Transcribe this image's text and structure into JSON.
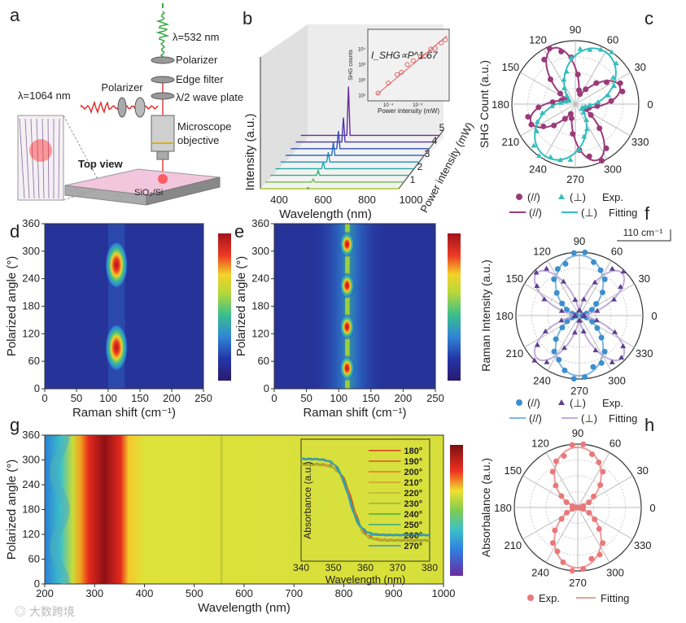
{
  "panel_labels": [
    "a",
    "b",
    "c",
    "d",
    "e",
    "f",
    "g",
    "h"
  ],
  "schematic": {
    "laser_out": "λ=532 nm",
    "polarizer_top": "Polarizer",
    "edge_filter": "Edge filter",
    "half_wave": "λ/2 wave plate",
    "objective_1": "Microscope",
    "objective_2": "objective",
    "polarizer_left": "Polarizer",
    "laser_in": "λ=1064 nm",
    "top_view": "Top view",
    "substrate": "SiO₂/Si"
  },
  "colors": {
    "purple": "#9b3a7a",
    "cyan": "#35bdbd",
    "blue": "#3d8fcd",
    "lilac": "#b7a4d4",
    "violet": "#5d3f8f",
    "pink": "#e9787a",
    "text": "#222222"
  },
  "watermark": "大数跨境",
  "chart_data": [
    {
      "id": "b",
      "type": "line",
      "title": "",
      "xlabel": "Wavelength (nm)",
      "ylabel": "Intensity (a.u.)",
      "zlabel": "Power intensity (mW)",
      "xticks": [
        "400",
        "600",
        "800",
        "1000"
      ],
      "xlim": [
        300,
        1100
      ],
      "zticks": [
        "1",
        "2",
        "3",
        "4",
        "5"
      ],
      "series_powers": [
        0.5,
        1,
        1.5,
        2,
        2.5,
        3,
        3.5,
        4,
        5
      ],
      "peak_nm": 532,
      "peak_heights": [
        0.03,
        0.06,
        0.1,
        0.14,
        0.2,
        0.27,
        0.36,
        0.5,
        1.0
      ],
      "inset": {
        "type": "scatter",
        "xlabel": "Power intensity (mW)",
        "ylabel": "SHG counts",
        "annotation": "I_SHG∝P^1.67",
        "exponent": 1.67,
        "xticks": [
          "10⁻⁴",
          "10⁻³"
        ],
        "yticks": [
          "10¹",
          "10²",
          "10³",
          "10⁴"
        ],
        "log_x": [
          -4.35,
          -4.0,
          -3.7,
          -3.55,
          -3.35,
          -3.15,
          -2.9,
          -2.75,
          -2.55,
          -2.4,
          -2.2,
          -2.05
        ],
        "log_y": [
          1.1,
          1.75,
          2.3,
          2.45,
          2.95,
          3.2,
          3.45,
          3.5,
          3.95,
          4.0,
          4.35,
          4.55
        ]
      }
    },
    {
      "id": "c",
      "type": "polar",
      "ylabel": "SHG Count (a.u.)",
      "angles": [
        "0",
        "30",
        "60",
        "90",
        "120",
        "150",
        "180",
        "210",
        "240",
        "270",
        "300",
        "330"
      ],
      "series": [
        {
          "name": "(//)",
          "kind": "Exp.",
          "color": "#9b3a7a",
          "peak_deg": 112,
          "offset": 0.18,
          "lobes": 4,
          "second": 0.75
        },
        {
          "name": "(⊥)",
          "kind": "Exp.",
          "color": "#35bdbd",
          "peak_deg": 62,
          "offset": 0.12,
          "lobes": 2,
          "second": 0
        }
      ],
      "legend": {
        "exp": [
          "(//)",
          "(⊥)",
          "Exp."
        ],
        "fit": [
          "(//)",
          "(⊥)",
          "Fitting"
        ]
      }
    },
    {
      "id": "d",
      "type": "heatmap",
      "xlabel": "Raman shift (cm⁻¹)",
      "ylabel": "Polarized angle (°)",
      "xticks": [
        "0",
        "50",
        "100",
        "150",
        "200",
        "250"
      ],
      "yticks": [
        "0",
        "60",
        "120",
        "180",
        "240",
        "300",
        "360"
      ],
      "xlim": [
        0,
        250
      ],
      "ylim": [
        0,
        360
      ],
      "hotspots": [
        {
          "x": 113,
          "y": 90
        },
        {
          "x": 113,
          "y": 270
        }
      ]
    },
    {
      "id": "e",
      "type": "heatmap",
      "xlabel": "Raman shift (cm⁻¹)",
      "ylabel": "Polarized angle (°)",
      "xticks": [
        "0",
        "50",
        "100",
        "150",
        "200",
        "250"
      ],
      "yticks": [
        "0",
        "60",
        "120",
        "180",
        "240",
        "300",
        "360"
      ],
      "xlim": [
        0,
        250
      ],
      "ylim": [
        0,
        360
      ],
      "hotspots": [
        {
          "x": 113,
          "y": 45
        },
        {
          "x": 113,
          "y": 135
        },
        {
          "x": 113,
          "y": 225
        },
        {
          "x": 113,
          "y": 315
        }
      ]
    },
    {
      "id": "f",
      "type": "polar",
      "ylabel": "Raman Intensity (a.u.)",
      "scale_bar": "110 cm⁻¹",
      "angles": [
        "0",
        "30",
        "60",
        "90",
        "120",
        "150",
        "180",
        "210",
        "240",
        "270",
        "300",
        "330"
      ],
      "series": [
        {
          "name": "(//)",
          "kind": "Exp.",
          "color": "#3d8fcd",
          "peak_deg": 90,
          "offset": 0.05,
          "lobes": 2,
          "second": 0
        },
        {
          "name": "(⊥)",
          "kind": "Exp.",
          "color": "#5d3f8f",
          "peak_deg": 45,
          "offset": 0.05,
          "lobes": 4,
          "second": 1
        }
      ],
      "legend": {
        "exp": [
          "(//)",
          "(⊥)",
          "Exp."
        ],
        "fit": [
          "(//)",
          "(⊥)",
          "Fitting"
        ]
      }
    },
    {
      "id": "g",
      "type": "heatmap",
      "xlabel": "Wavelength (nm)",
      "ylabel": "Polarized angle (°)",
      "xticks": [
        "200",
        "300",
        "400",
        "500",
        "600",
        "700",
        "800",
        "900",
        "1000"
      ],
      "yticks": [
        "0",
        "60",
        "120",
        "180",
        "240",
        "300",
        "360"
      ],
      "xlim": [
        200,
        1000
      ],
      "ylim": [
        0,
        360
      ],
      "inset": {
        "type": "line",
        "xlabel": "Wavelength (nm)",
        "ylabel": "Absorbance (a.u.)",
        "xticks": [
          "340",
          "350",
          "360",
          "370",
          "380"
        ],
        "xlim": [
          340,
          380
        ],
        "legend": [
          "180°",
          "190°",
          "200°",
          "210°",
          "220°",
          "230°",
          "240°",
          "250°",
          "260°",
          "270°"
        ],
        "colors": [
          "#e0342c",
          "#e5512a",
          "#e8762a",
          "#d79c2c",
          "#c0b22f",
          "#8fb836",
          "#4caf3f",
          "#2fa98a",
          "#34a5b5",
          "#3a8fc7"
        ]
      }
    },
    {
      "id": "h",
      "type": "polar",
      "ylabel": "Absorbalance (a.u.)",
      "angles": [
        "0",
        "30",
        "60",
        "90",
        "120",
        "150",
        "180",
        "210",
        "240",
        "270",
        "300",
        "330"
      ],
      "series": [
        {
          "name": "Exp.",
          "kind": "Exp.",
          "color": "#e9787a",
          "peak_deg": 90,
          "offset": 0.02,
          "lobes": 2,
          "second": 0
        }
      ],
      "legend": {
        "exp": [
          "Exp."
        ],
        "fit": [
          "Fitting"
        ]
      }
    }
  ]
}
